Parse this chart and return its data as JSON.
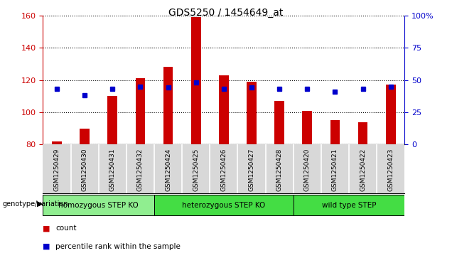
{
  "title": "GDS5250 / 1454649_at",
  "samples": [
    "GSM1250429",
    "GSM1250430",
    "GSM1250431",
    "GSM1250432",
    "GSM1250424",
    "GSM1250425",
    "GSM1250426",
    "GSM1250427",
    "GSM1250428",
    "GSM1250420",
    "GSM1250421",
    "GSM1250422",
    "GSM1250423"
  ],
  "counts": [
    82,
    90,
    110,
    121,
    128,
    159,
    123,
    119,
    107,
    101,
    95,
    94,
    117
  ],
  "percentiles": [
    43,
    38,
    43,
    45,
    44,
    48,
    43,
    44,
    43,
    43,
    41,
    43,
    45
  ],
  "ymin": 80,
  "ymax": 160,
  "yticks": [
    80,
    100,
    120,
    140,
    160
  ],
  "y2min": 0,
  "y2max": 100,
  "y2ticks": [
    0,
    25,
    50,
    75,
    100
  ],
  "groups": [
    {
      "label": "homozygous STEP KO",
      "start": 0,
      "end": 4
    },
    {
      "label": "heterozygous STEP KO",
      "start": 4,
      "end": 9
    },
    {
      "label": "wild type STEP",
      "start": 9,
      "end": 13
    }
  ],
  "group_colors": [
    "#90EE90",
    "#44DD44",
    "#44DD44"
  ],
  "bar_color": "#CC0000",
  "dot_color": "#0000CC",
  "bar_width": 0.35,
  "ylabel_color": "#CC0000",
  "y2label_color": "#0000CC",
  "legend_count_color": "#CC0000",
  "legend_pct_color": "#0000CC",
  "tick_bg_color": "#D8D8D8"
}
